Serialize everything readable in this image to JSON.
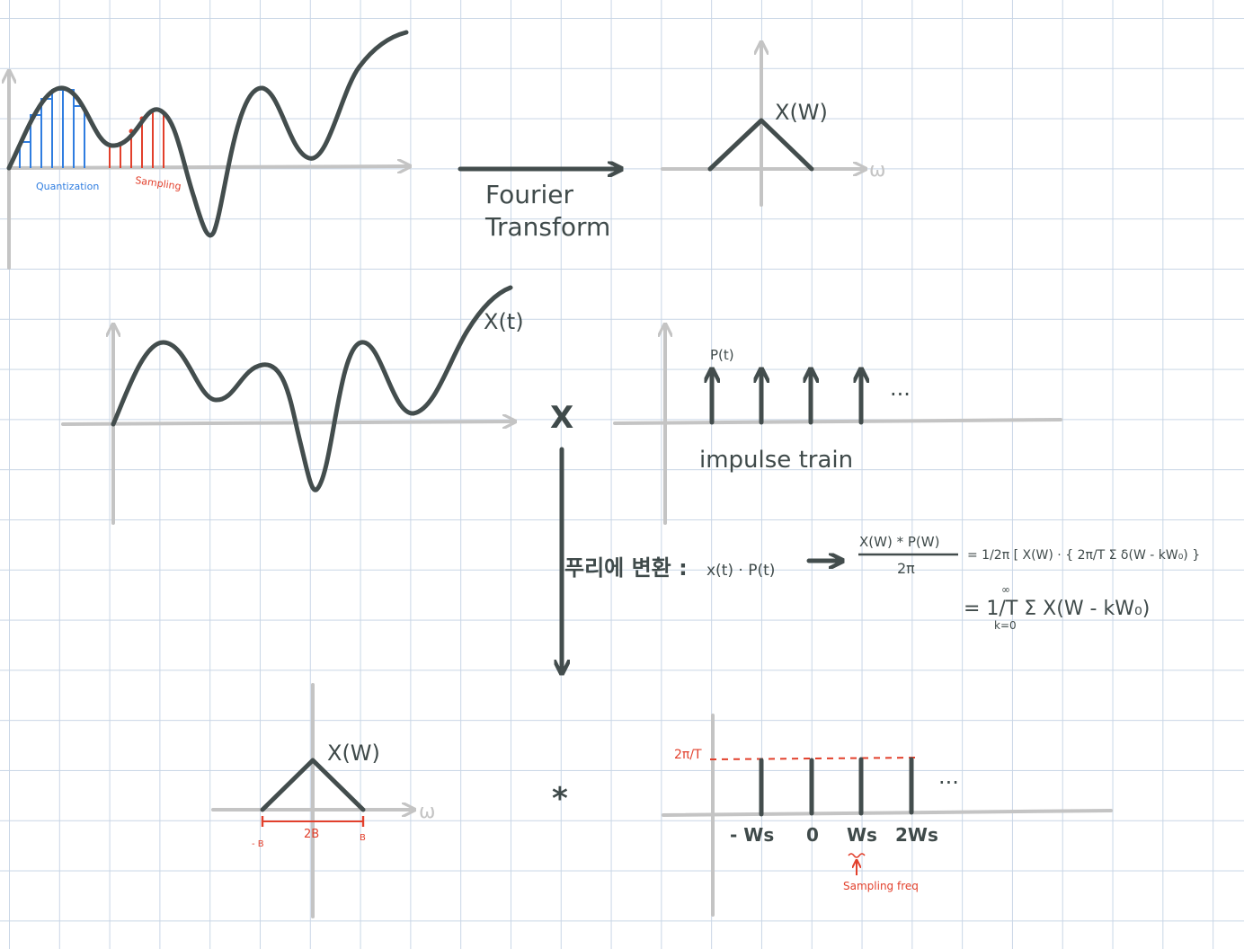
{
  "labels": {
    "quantization": "Quantization",
    "sampling": "Sampling",
    "fourier_line1": "Fourier",
    "fourier_line2": "Transform",
    "xw_top": "X(W)",
    "omega_top": "ω",
    "xt": "X(t)",
    "multiply": "X",
    "pt": "P(t)",
    "dots_impulse": "...",
    "impulse_train": "impulse train",
    "fourier_kr": "푸리에 변환 :",
    "eq_lhs": "x(t) · P(t)",
    "eq_frac_num": "X(W) * P(W)",
    "eq_frac_den": "2π",
    "eq_rhs1": "= 1/2π [ X(W) · { 2π/T Σ δ(W - kW₀) }",
    "eq_rhs2": "= 1/T Σ X(W - kW₀)",
    "eq_sum_top": "∞",
    "eq_sum_bottom": "k=0",
    "xw_bottom": "X(W)",
    "omega_bottom": "ω",
    "minus_b": "- B",
    "two_b": "2B",
    "plus_b": "B",
    "convolve": "*",
    "two_pi_over_t": "2π/T",
    "dots_spectrum": "...",
    "tick_neg_ws": "- Ws",
    "tick_zero": "0",
    "tick_ws": "Ws",
    "tick_2ws": "2Ws",
    "sampling_freq": "Sampling freq"
  },
  "colors": {
    "ink": "#434d4d",
    "axis": "#c4c4c4",
    "grid": "#c9d6e6",
    "blue": "#2f7de0",
    "red": "#e2402c"
  }
}
